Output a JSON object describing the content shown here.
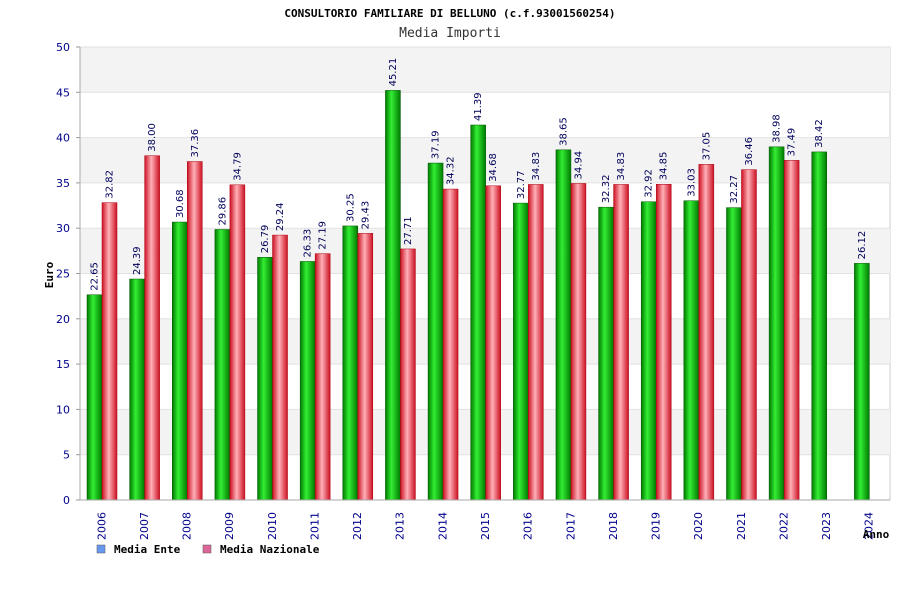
{
  "chart_data": {
    "type": "bar",
    "title": "CONSULTORIO FAMILIARE DI BELLUNO (c.f.93001560254)",
    "subtitle": "Media Importi",
    "ylabel": "Euro",
    "xlabel": "Anno",
    "ylim": [
      0,
      50
    ],
    "yticks": [
      0,
      5,
      10,
      15,
      20,
      25,
      30,
      35,
      40,
      45,
      50
    ],
    "categories": [
      "2006",
      "2007",
      "2008",
      "2009",
      "2010",
      "2011",
      "2012",
      "2013",
      "2014",
      "2015",
      "2016",
      "2017",
      "2018",
      "2019",
      "2020",
      "2021",
      "2022",
      "2023",
      "2024"
    ],
    "series": [
      {
        "name": "Media Ente",
        "color": "#00aa00",
        "legend_color": "#6699ee",
        "values": [
          22.65,
          24.39,
          30.68,
          29.86,
          26.79,
          26.33,
          30.25,
          45.21,
          37.19,
          41.39,
          32.77,
          38.65,
          32.32,
          32.92,
          33.03,
          32.27,
          38.98,
          38.42,
          26.12
        ],
        "labels": [
          "22.65",
          "24.39",
          "30.68",
          "29.86",
          "26.79",
          "26.33",
          "30.25",
          "45.21",
          "37.19",
          "41.39",
          "32.77",
          "38.65",
          "32.32",
          "32.92",
          "33.03",
          "32.27",
          "38.98",
          "38.42",
          "26.12"
        ]
      },
      {
        "name": "Media Nazionale",
        "color": "#ee2233",
        "legend_color": "#dd6699",
        "values": [
          32.82,
          38.0,
          37.36,
          34.79,
          29.24,
          27.19,
          29.43,
          27.71,
          34.32,
          34.68,
          34.83,
          34.94,
          34.83,
          34.85,
          37.05,
          36.46,
          37.49,
          null,
          null
        ],
        "labels": [
          "32.82",
          "38.00",
          "37.36",
          "34.79",
          "29.24",
          "27.19",
          "29.43",
          "27.71",
          "34.32",
          "34.68",
          "34.83",
          "34.94",
          "34.83",
          "34.85",
          "37.05",
          "36.46",
          "37.49",
          null,
          null
        ]
      }
    ],
    "grid": true,
    "legend_position": "bottom-left"
  }
}
